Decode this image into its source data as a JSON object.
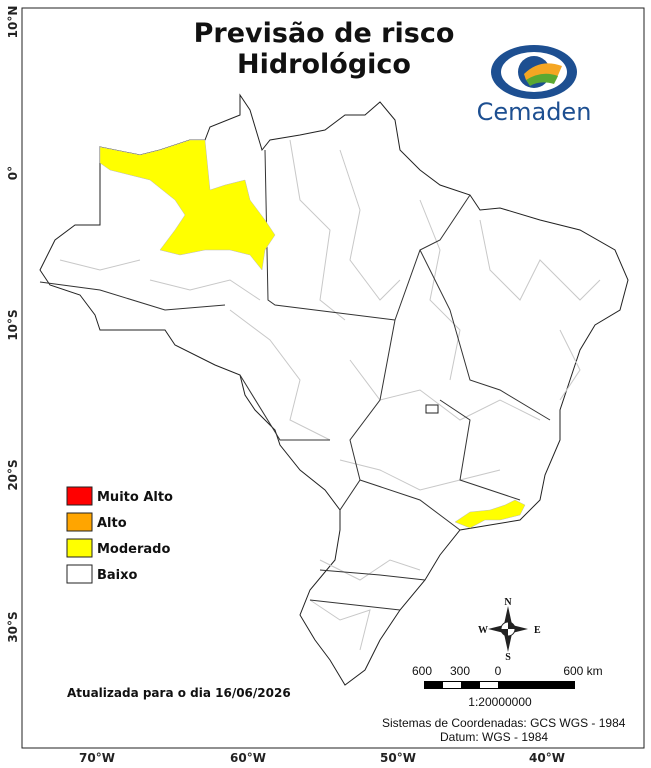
{
  "header": {
    "title_lines": [
      "Previsão de risco",
      "Hidrológico"
    ],
    "logo_text": "Cemaden"
  },
  "latitude_labels": [
    "10°N",
    "0°",
    "10°S",
    "20°S",
    "30°S"
  ],
  "longitude_labels": [
    "70°W",
    "60°W",
    "50°W",
    "40°W"
  ],
  "legend": [
    {
      "label": "Muito Alto",
      "color": "#ff0000"
    },
    {
      "label": "Alto",
      "color": "#ffa500"
    },
    {
      "label": "Moderado",
      "color": "#ffff00"
    },
    {
      "label": "Baixo",
      "color": "#ffffff"
    }
  ],
  "updated": "Atualizada para o dia 16/06/2026",
  "scale": {
    "labels": [
      "600",
      "300",
      "0",
      "600 km"
    ],
    "ratio": "1:20000000"
  },
  "compass": {
    "n": "N",
    "s": "S",
    "e": "E",
    "w": "W"
  },
  "footer": [
    "Sistemas de Coordenadas: GCS WGS - 1984",
    "Datum: WGS - 1984"
  ]
}
